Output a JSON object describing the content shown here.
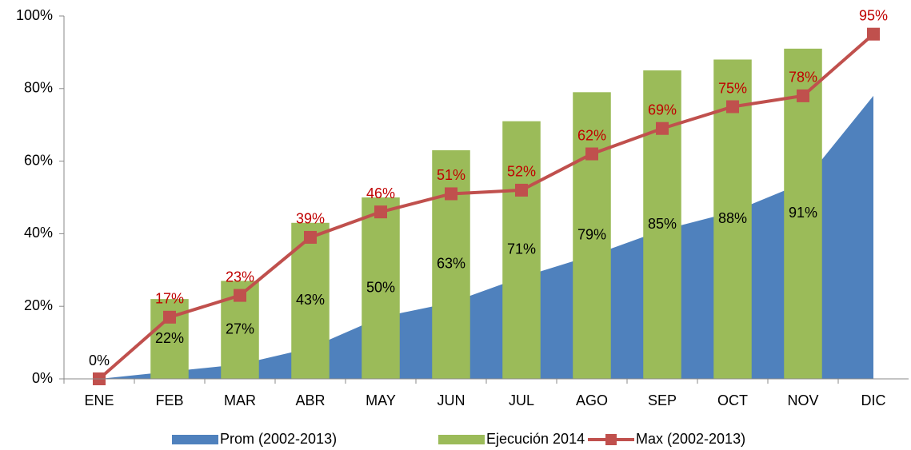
{
  "chart_data": {
    "type": "combo",
    "categories": [
      "ENE",
      "FEB",
      "MAR",
      "ABR",
      "MAY",
      "JUN",
      "JUL",
      "AGO",
      "SEP",
      "OCT",
      "NOV",
      "DIC"
    ],
    "series": [
      {
        "name": "Prom (2002-2013)",
        "type": "area",
        "color": "#4f81bd",
        "values": [
          0,
          2,
          4,
          8.5,
          17,
          21,
          28,
          34,
          41,
          46,
          54,
          78
        ]
      },
      {
        "name": "Ejecución 2014",
        "type": "bar",
        "color": "#9bbb59",
        "values": [
          null,
          22,
          27,
          43,
          50,
          63,
          71,
          79,
          85,
          88,
          91,
          null
        ],
        "value_labels": [
          null,
          "22%",
          "27%",
          "43%",
          "50%",
          "63%",
          "71%",
          "79%",
          "85%",
          "88%",
          "91%",
          null
        ]
      },
      {
        "name": "Max (2002-2013)",
        "type": "line",
        "color": "#c0504d",
        "values": [
          0,
          17,
          23,
          39,
          46,
          51,
          52,
          62,
          69,
          75,
          78,
          95
        ],
        "value_labels": [
          "0%",
          "17%",
          "23%",
          "39%",
          "46%",
          "51%",
          "52%",
          "62%",
          "69%",
          "75%",
          "78%",
          "95%"
        ]
      }
    ],
    "ylim": [
      0,
      100
    ],
    "yticks": [
      {
        "value": 0,
        "label": "0%"
      },
      {
        "value": 20,
        "label": "20%"
      },
      {
        "value": 40,
        "label": "40%"
      },
      {
        "value": 60,
        "label": "60%"
      },
      {
        "value": 80,
        "label": "80%"
      },
      {
        "value": 100,
        "label": "100%"
      }
    ],
    "legend": "bottom"
  }
}
